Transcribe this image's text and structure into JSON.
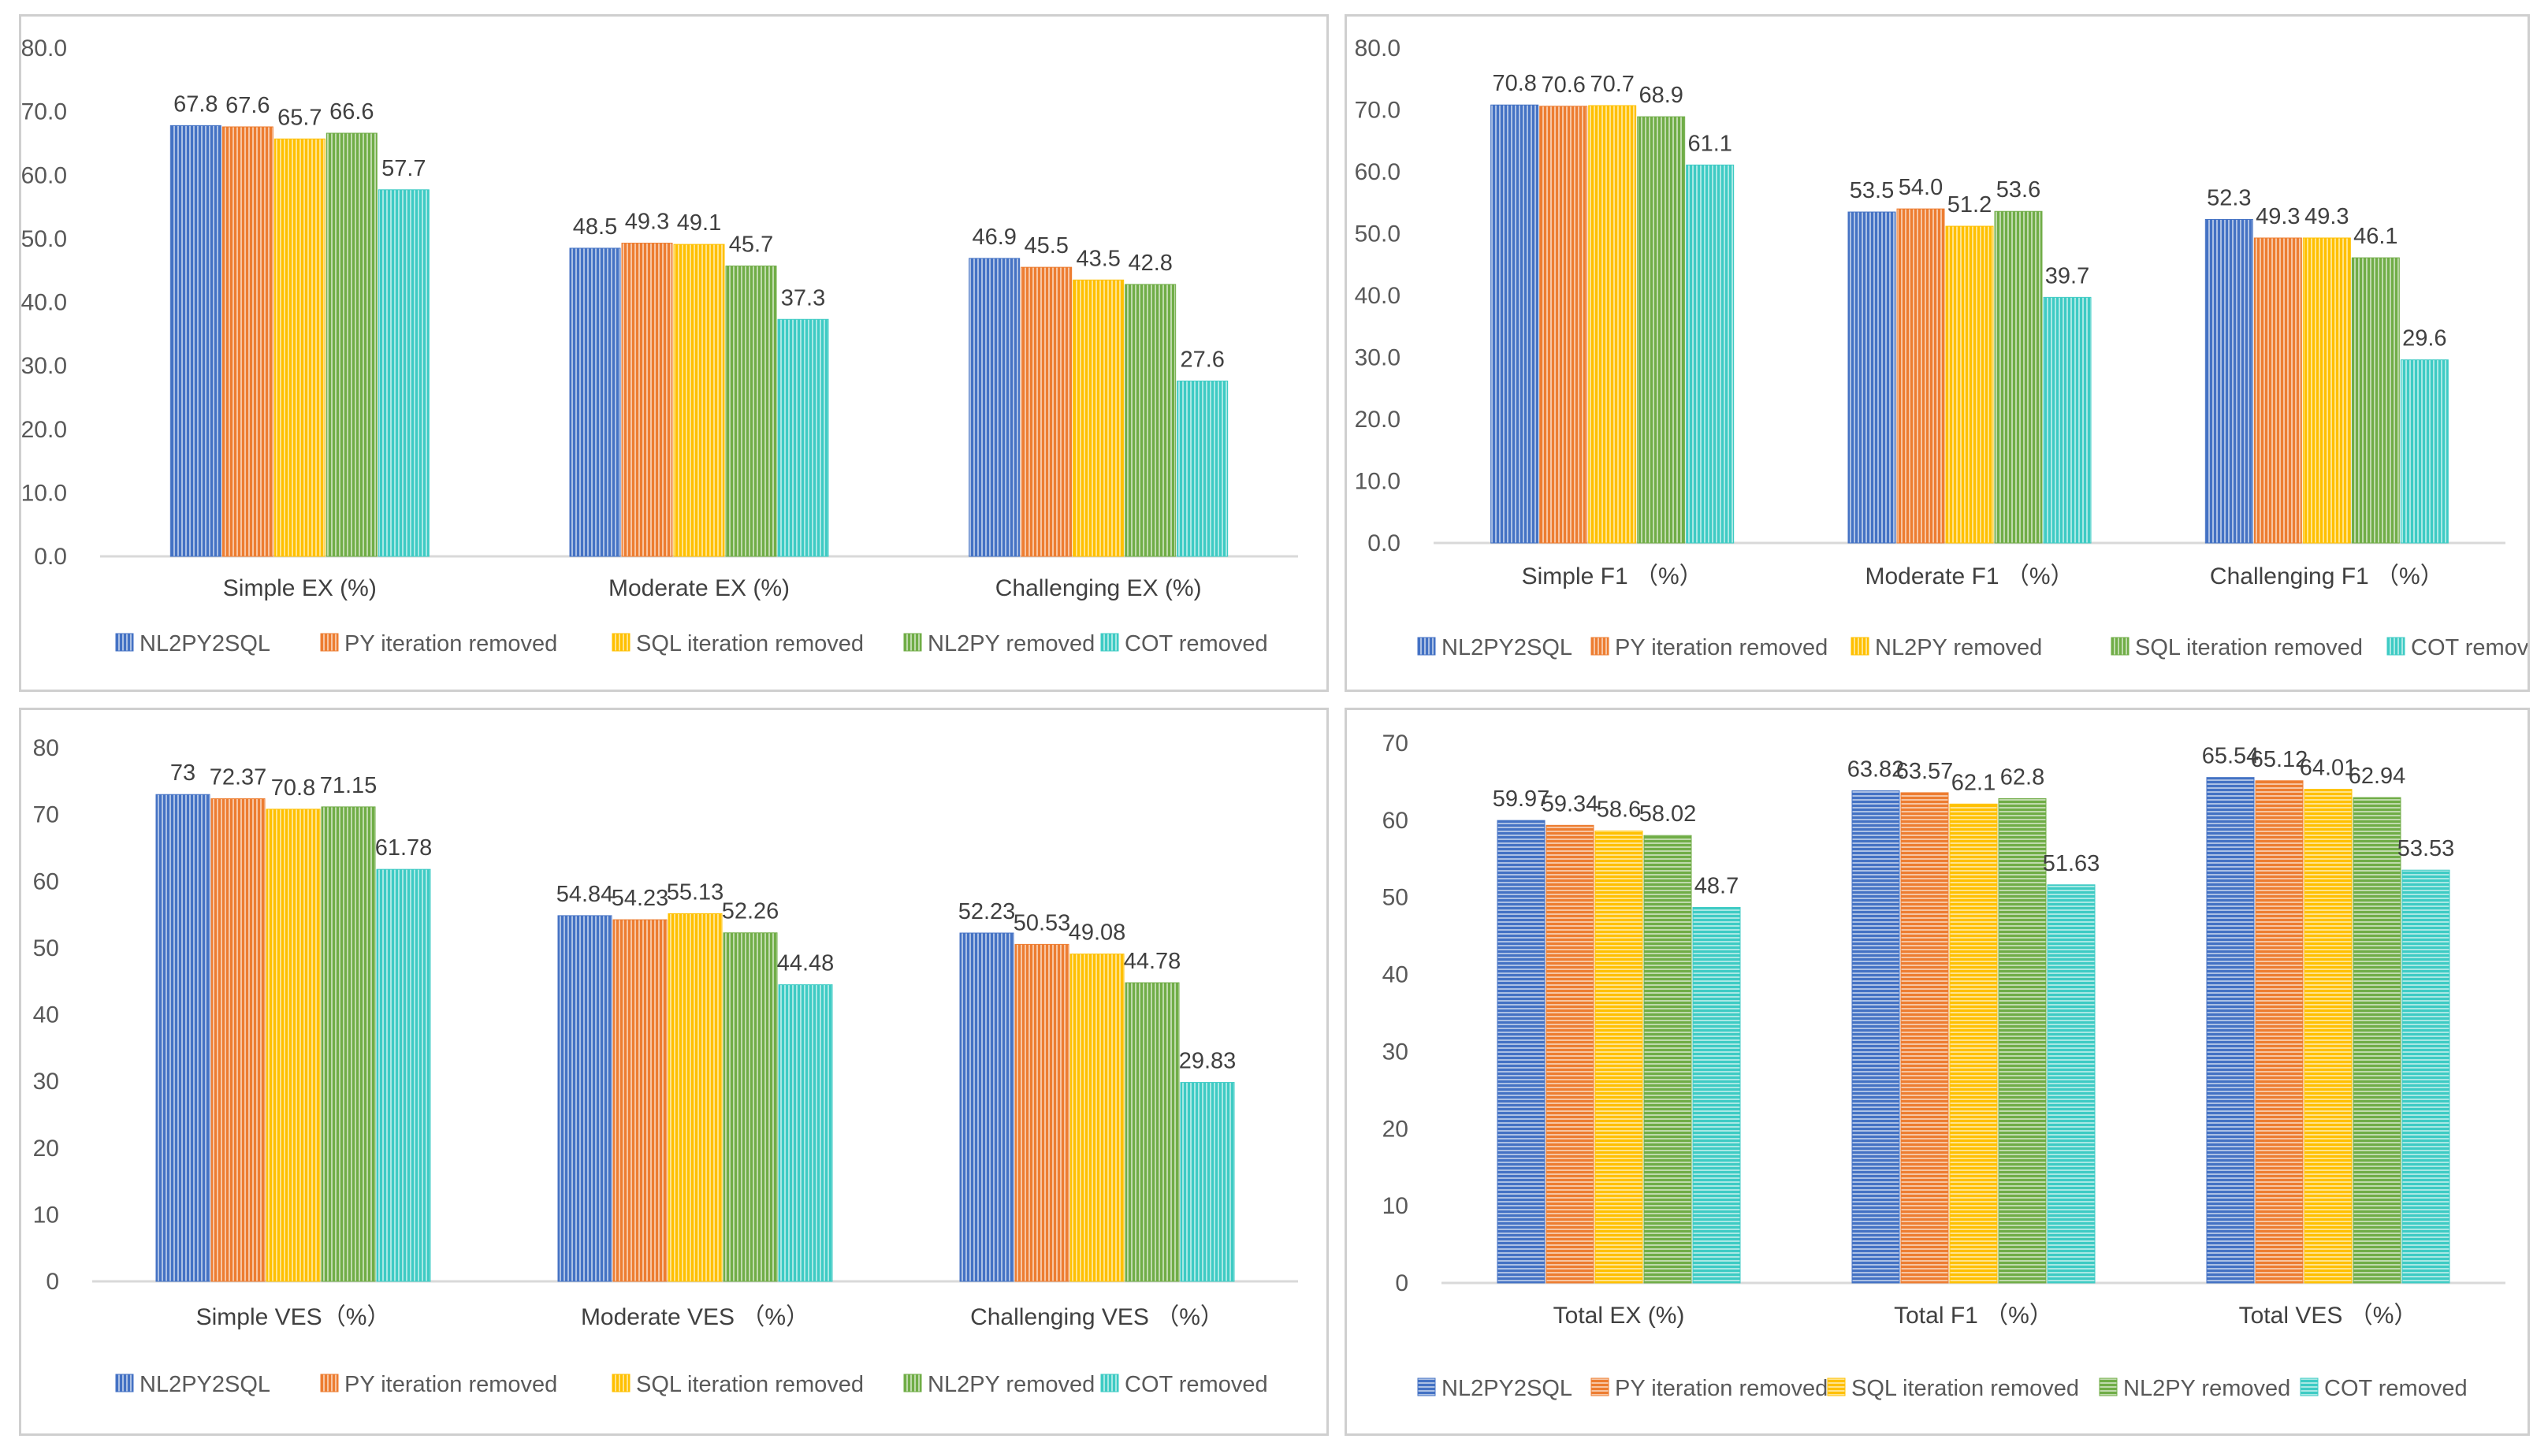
{
  "colors": {
    "series": [
      "#4472C4",
      "#ED7D31",
      "#FFC000",
      "#70AD47",
      "#3ECBC4"
    ],
    "axis": "#d9d9d9",
    "text": "#595959"
  },
  "chart_data": [
    {
      "type": "bar",
      "title": "",
      "categories": [
        "Simple EX (%)",
        "Moderate EX (%)",
        "Challenging EX (%)"
      ],
      "series": [
        {
          "name": "NL2PY2SQL",
          "values": [
            67.8,
            48.5,
            46.9
          ]
        },
        {
          "name": "PY iteration removed",
          "values": [
            67.6,
            49.3,
            45.5
          ]
        },
        {
          "name": "SQL iteration removed",
          "values": [
            65.7,
            49.1,
            43.5
          ]
        },
        {
          "name": "NL2PY removed",
          "values": [
            66.6,
            45.7,
            42.8
          ]
        },
        {
          "name": "COT removed",
          "values": [
            57.7,
            37.3,
            27.6
          ]
        }
      ],
      "yticks": [
        "0.0",
        "10.0",
        "20.0",
        "30.0",
        "40.0",
        "50.0",
        "60.0",
        "70.0",
        "80.0"
      ],
      "ylim": [
        0,
        80
      ],
      "stripes": "vertical",
      "legend_position": "bottom"
    },
    {
      "type": "bar",
      "title": "",
      "categories": [
        "Simple F1 （%）",
        "Moderate F1 （%）",
        "Challenging F1 （%）"
      ],
      "series": [
        {
          "name": "NL2PY2SQL",
          "values": [
            70.8,
            53.5,
            52.3
          ]
        },
        {
          "name": "PY iteration removed",
          "values": [
            70.6,
            54.0,
            49.3
          ]
        },
        {
          "name": "NL2PY removed",
          "values": [
            70.7,
            51.2,
            49.3
          ]
        },
        {
          "name": "SQL iteration removed",
          "values": [
            68.9,
            53.6,
            46.1
          ]
        },
        {
          "name": "COT removed",
          "values": [
            61.1,
            39.7,
            29.6
          ]
        }
      ],
      "yticks": [
        "0.0",
        "10.0",
        "20.0",
        "30.0",
        "40.0",
        "50.0",
        "60.0",
        "70.0",
        "80.0"
      ],
      "ylim": [
        0,
        80
      ],
      "stripes": "vertical",
      "legend_position": "bottom"
    },
    {
      "type": "bar",
      "title": "",
      "categories": [
        "Simple VES（%）",
        "Moderate VES （%）",
        "Challenging VES （%）"
      ],
      "series": [
        {
          "name": "NL2PY2SQL",
          "values": [
            73,
            54.84,
            52.23
          ]
        },
        {
          "name": "PY iteration removed",
          "values": [
            72.37,
            54.23,
            50.53
          ]
        },
        {
          "name": "SQL iteration removed",
          "values": [
            70.8,
            55.13,
            49.08
          ]
        },
        {
          "name": "NL2PY removed",
          "values": [
            71.15,
            52.26,
            44.78
          ]
        },
        {
          "name": "COT removed",
          "values": [
            61.78,
            44.48,
            29.83
          ]
        }
      ],
      "yticks": [
        "0",
        "10",
        "20",
        "30",
        "40",
        "50",
        "60",
        "70",
        "80"
      ],
      "ylim": [
        0,
        80
      ],
      "stripes": "vertical",
      "legend_position": "bottom"
    },
    {
      "type": "bar",
      "title": "",
      "categories": [
        "Total EX (%)",
        "Total F1 （%）",
        "Total VES （%）"
      ],
      "series": [
        {
          "name": "NL2PY2SQL",
          "values": [
            59.97,
            63.82,
            65.54
          ]
        },
        {
          "name": "PY iteration removed",
          "values": [
            59.34,
            63.57,
            65.12
          ]
        },
        {
          "name": "SQL iteration removed",
          "values": [
            58.6,
            62.1,
            64.01
          ]
        },
        {
          "name": "NL2PY removed",
          "values": [
            58.02,
            62.8,
            62.94
          ]
        },
        {
          "name": "COT removed",
          "values": [
            48.7,
            51.63,
            53.53
          ]
        }
      ],
      "yticks": [
        "0",
        "10",
        "20",
        "30",
        "40",
        "50",
        "60",
        "70"
      ],
      "ylim": [
        0,
        70
      ],
      "stripes": "horizontal",
      "legend_position": "bottom"
    }
  ]
}
